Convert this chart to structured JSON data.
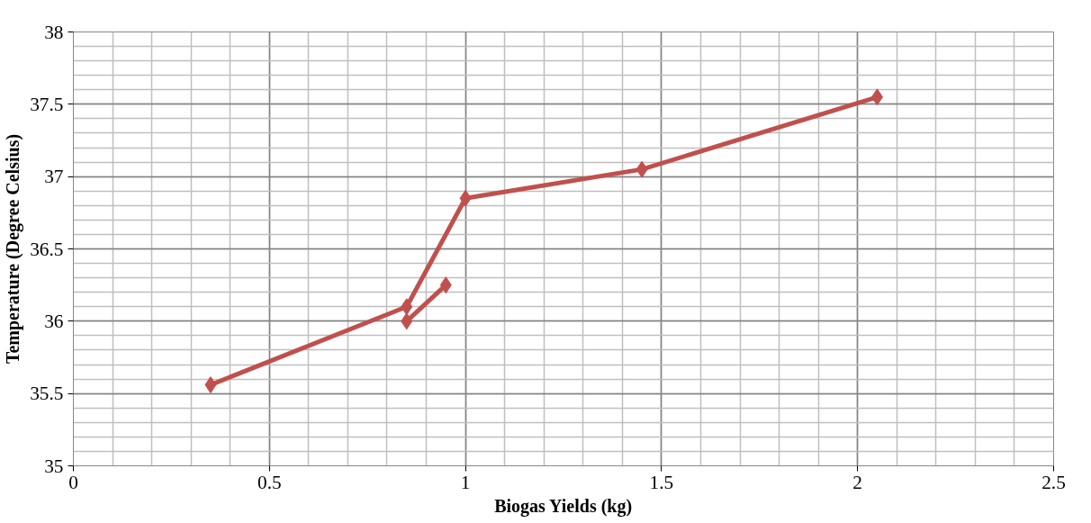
{
  "chart_data": {
    "type": "line",
    "xlabel": "Biogas Yields (kg)",
    "ylabel": "Temperature (Degree Celsius)",
    "series": [
      {
        "color": "#c0504d",
        "x": [
          0.35,
          0.85,
          1.0,
          1.45,
          2.05
        ],
        "values": [
          35.56,
          36.1,
          36.85,
          37.05,
          37.55
        ]
      },
      {
        "color": "#c0504d",
        "x": [
          0.85,
          0.95
        ],
        "values": [
          36.0,
          36.25
        ]
      }
    ],
    "xlim": [
      0,
      2.5
    ],
    "ylim": [
      35,
      38
    ],
    "xticks": [
      0,
      0.5,
      1,
      1.5,
      2,
      2.5
    ],
    "yticks": [
      35,
      35.5,
      36,
      36.5,
      37,
      37.5,
      38
    ],
    "grid": true,
    "marker": "diamond",
    "line_style": "solid"
  }
}
